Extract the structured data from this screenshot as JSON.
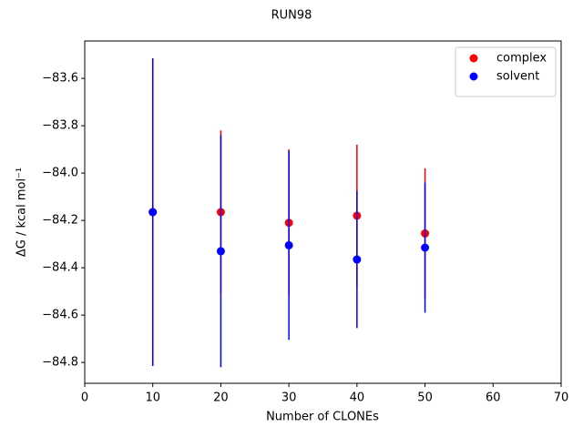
{
  "chart_data": {
    "type": "errorbar",
    "title": "RUN98",
    "xlabel": "Number of CLONEs",
    "ylabel": "ΔG / kcal mol⁻¹",
    "xlim": [
      0,
      70
    ],
    "xticks": [
      0,
      10,
      20,
      30,
      40,
      50,
      60,
      70
    ],
    "ylim": [
      -84.888,
      -83.442
    ],
    "yticks": [
      {
        "value": -83.6,
        "label": "−83.6"
      },
      {
        "value": -83.8,
        "label": "−83.8"
      },
      {
        "value": -84.0,
        "label": "−84.0"
      },
      {
        "value": -84.2,
        "label": "−84.2"
      },
      {
        "value": -84.4,
        "label": "−84.4"
      },
      {
        "value": -84.6,
        "label": "−84.6"
      },
      {
        "value": -84.8,
        "label": "−84.8"
      }
    ],
    "legend": "upper right",
    "series": [
      {
        "name": "complex",
        "color": "#ff0000",
        "x": [
          10,
          20,
          30,
          40,
          50
        ],
        "values": [
          -84.165,
          -84.165,
          -84.21,
          -84.18,
          -84.255
        ],
        "errors": [
          0.65,
          0.345,
          0.31,
          0.3,
          0.275
        ]
      },
      {
        "name": "solvent",
        "color": "#0000ff",
        "x": [
          10,
          20,
          30,
          40,
          50
        ],
        "values": [
          -84.165,
          -84.33,
          -84.305,
          -84.365,
          -84.315
        ],
        "errors": [
          0.65,
          0.49,
          0.4,
          0.29,
          0.275
        ]
      }
    ]
  }
}
